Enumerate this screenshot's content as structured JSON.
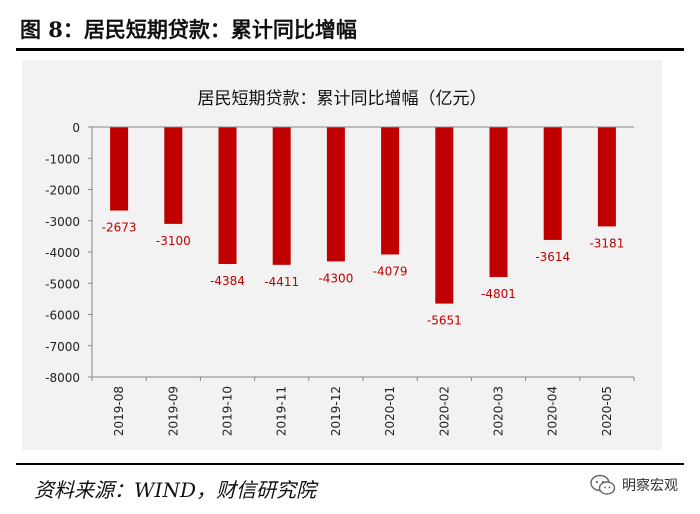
{
  "figure": {
    "title": "图 8：居民短期贷款：累计同比增幅",
    "source": "资料来源：WIND，财信研究院",
    "watermark": "明察宏观"
  },
  "chart_data": {
    "type": "bar",
    "title": "居民短期贷款：累计同比增幅（亿元）",
    "categories": [
      "2019-08",
      "2019-09",
      "2019-10",
      "2019-11",
      "2019-12",
      "2020-01",
      "2020-02",
      "2020-03",
      "2020-04",
      "2020-05"
    ],
    "series": [
      {
        "values": [
          -2673,
          -3100,
          -4384,
          -4411,
          -4300,
          -4079,
          -5651,
          -4801,
          -3614,
          -3181
        ]
      }
    ],
    "data_labels": [
      "-2673",
      "-3100",
      "-4384",
      "-4411",
      "-4300",
      "-4079",
      "-5651",
      "-4801",
      "-3614",
      "-3181"
    ],
    "y_ticks": [
      0,
      -1000,
      -2000,
      -3000,
      -4000,
      -5000,
      -6000,
      -7000,
      -8000
    ],
    "y_tick_labels": [
      "0",
      "-1000",
      "-2000",
      "-3000",
      "-4000",
      "-5000",
      "-6000",
      "-7000",
      "-8000"
    ],
    "ylim": [
      -8000,
      0
    ],
    "xlabel": "",
    "ylabel": "",
    "grid": false,
    "legend": "none",
    "bar_color": "#c00000",
    "label_color": "#c00000",
    "background": "#f2f2f2"
  }
}
